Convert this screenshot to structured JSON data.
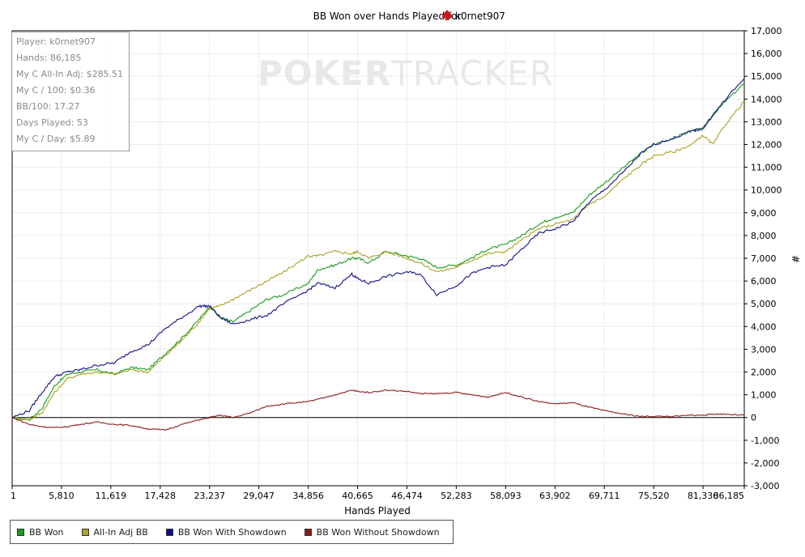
{
  "chart_data": {
    "type": "line",
    "title": "BB Won over Hands Played for",
    "player": "k0rnet907",
    "xlabel": "Hands Played",
    "ylabel": "#",
    "xlim": [
      1,
      86185
    ],
    "ylim": [
      -3000,
      17000
    ],
    "x_ticks": [
      "1",
      "5,810",
      "11,619",
      "17,428",
      "23,237",
      "29,047",
      "34,856",
      "40,665",
      "46,474",
      "52,283",
      "58,093",
      "63,902",
      "69,711",
      "75,520",
      "81,330",
      "86,185"
    ],
    "x_tick_values": [
      1,
      5810,
      11619,
      17428,
      23237,
      29047,
      34856,
      40665,
      46474,
      52283,
      58093,
      63902,
      69711,
      75520,
      81330,
      86185
    ],
    "y_ticks": [
      "-3,000",
      "-2,000",
      "-1,000",
      "0",
      "1,000",
      "2,000",
      "3,000",
      "4,000",
      "5,000",
      "6,000",
      "7,000",
      "8,000",
      "9,000",
      "10,000",
      "11,000",
      "12,000",
      "13,000",
      "14,000",
      "15,000",
      "16,000",
      "17,000"
    ],
    "y_tick_values": [
      -3000,
      -2000,
      -1000,
      0,
      1000,
      2000,
      3000,
      4000,
      5000,
      6000,
      7000,
      8000,
      9000,
      10000,
      11000,
      12000,
      13000,
      14000,
      15000,
      16000,
      17000
    ],
    "grid": true,
    "legend_position": "bottom-left",
    "series": [
      {
        "name": "BB Won",
        "color": "#1a9a1a",
        "x": [
          1,
          2000,
          3500,
          5000,
          6500,
          8000,
          10000,
          12000,
          14000,
          16000,
          18000,
          20000,
          22000,
          23237,
          24500,
          26000,
          28000,
          30000,
          32000,
          34856,
          36000,
          38000,
          40000,
          40665,
          42000,
          44000,
          46474,
          48000,
          50000,
          52283,
          54000,
          56000,
          58093,
          60000,
          62000,
          63902,
          66000,
          68000,
          69711,
          72000,
          74000,
          75520,
          78000,
          80000,
          81330,
          82500,
          84000,
          86185
        ],
        "y": [
          0,
          -100,
          400,
          1400,
          1900,
          2000,
          2100,
          1900,
          2200,
          2100,
          2800,
          3500,
          4300,
          4900,
          4400,
          4200,
          4700,
          5200,
          5400,
          5900,
          6500,
          6700,
          7000,
          7000,
          6800,
          7300,
          7100,
          7000,
          6600,
          6700,
          7000,
          7400,
          7600,
          8000,
          8500,
          8800,
          9000,
          9800,
          10300,
          11000,
          11600,
          12000,
          12300,
          12600,
          12700,
          13300,
          13900,
          14700
        ]
      },
      {
        "name": "All-In Adj BB",
        "color": "#a8a424",
        "x": [
          1,
          2000,
          3500,
          5000,
          6500,
          8000,
          10000,
          12000,
          14000,
          16000,
          18000,
          20000,
          22000,
          23237,
          24500,
          26000,
          28000,
          30000,
          32000,
          34856,
          36000,
          38000,
          40000,
          40665,
          42000,
          44000,
          46474,
          48000,
          50000,
          52283,
          54000,
          56000,
          58093,
          60000,
          62000,
          63902,
          66000,
          68000,
          69711,
          72000,
          74000,
          75520,
          78000,
          80000,
          81330,
          82500,
          84000,
          86185
        ],
        "y": [
          0,
          -100,
          200,
          1100,
          1700,
          1900,
          2000,
          1900,
          2100,
          2000,
          2700,
          3400,
          4200,
          4800,
          4900,
          5200,
          5600,
          6000,
          6400,
          7100,
          7100,
          7300,
          7200,
          7300,
          7000,
          7300,
          7000,
          6800,
          6400,
          6600,
          6900,
          7200,
          7300,
          7800,
          8300,
          8500,
          8700,
          9400,
          9700,
          10500,
          11100,
          11500,
          11700,
          12000,
          12400,
          12000,
          12900,
          13900
        ]
      },
      {
        "name": "BB Won With Showdown",
        "color": "#10108a",
        "x": [
          1,
          2000,
          3500,
          5000,
          6500,
          8000,
          10000,
          12000,
          14000,
          16000,
          18000,
          20000,
          22000,
          23237,
          24500,
          26000,
          28000,
          30000,
          32000,
          34856,
          36000,
          38000,
          40000,
          40665,
          42000,
          44000,
          46474,
          48000,
          50000,
          52283,
          54000,
          56000,
          58093,
          60000,
          62000,
          63902,
          66000,
          68000,
          69711,
          72000,
          74000,
          75520,
          78000,
          80000,
          81330,
          82500,
          84000,
          86185
        ],
        "y": [
          0,
          300,
          1100,
          1800,
          2000,
          2100,
          2300,
          2400,
          2900,
          3200,
          3900,
          4400,
          4900,
          4900,
          4400,
          4100,
          4300,
          4500,
          5000,
          5600,
          5900,
          5700,
          6300,
          6100,
          5900,
          6200,
          6400,
          6300,
          5400,
          5800,
          6300,
          6600,
          6700,
          7400,
          8100,
          8300,
          8600,
          9500,
          10000,
          10800,
          11600,
          12000,
          12300,
          12600,
          12700,
          13300,
          14000,
          14900
        ]
      },
      {
        "name": "BB Won Without Showdown",
        "color": "#8a1a1a",
        "x": [
          1,
          2000,
          3500,
          5000,
          6500,
          8000,
          10000,
          12000,
          14000,
          16000,
          18000,
          20000,
          22000,
          23237,
          24500,
          26000,
          28000,
          30000,
          32000,
          34856,
          36000,
          38000,
          40000,
          40665,
          42000,
          44000,
          46474,
          48000,
          50000,
          52283,
          54000,
          56000,
          58093,
          60000,
          62000,
          63902,
          66000,
          68000,
          69711,
          72000,
          74000,
          75520,
          78000,
          80000,
          81330,
          82500,
          84000,
          86185
        ],
        "y": [
          0,
          -300,
          -400,
          -450,
          -400,
          -300,
          -200,
          -300,
          -350,
          -500,
          -550,
          -300,
          -100,
          0,
          100,
          0,
          200,
          500,
          600,
          700,
          800,
          1000,
          1200,
          1150,
          1100,
          1200,
          1150,
          1050,
          1050,
          1100,
          1000,
          900,
          1100,
          900,
          700,
          600,
          650,
          450,
          300,
          150,
          50,
          50,
          50,
          100,
          100,
          150,
          150,
          100
        ]
      }
    ]
  },
  "stats": [
    "Player: k0rnet907",
    "Hands: 86,185",
    "My C All-In Adj: $285.51",
    "My C / 100: $0.36",
    "BB/100: 17.27",
    "Days Played: 53",
    "My C / Day: $5.89"
  ],
  "watermark": {
    "bold": "POKER",
    "light": "TRACKER"
  }
}
